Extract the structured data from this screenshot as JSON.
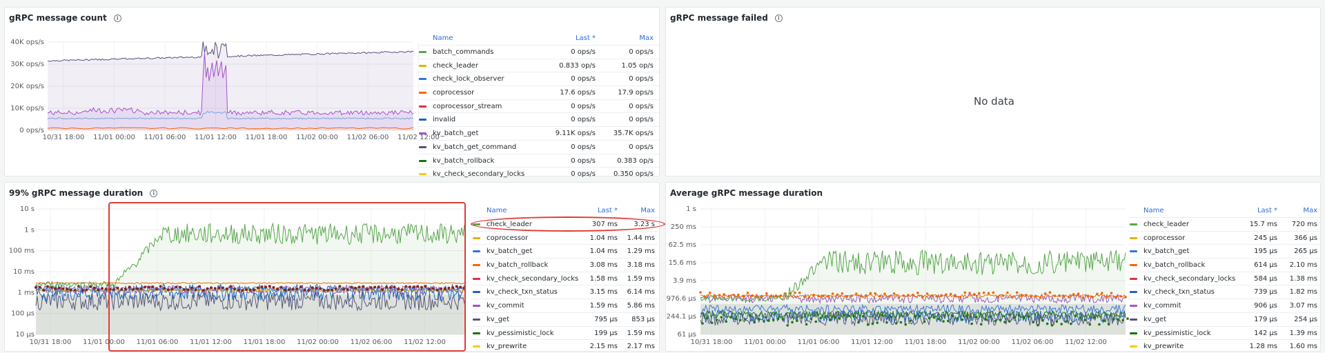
{
  "panels": {
    "count": {
      "title": "gRPC message count",
      "yticks": [
        "40K ops/s",
        "30K ops/s",
        "20K ops/s",
        "10K ops/s",
        "0 ops/s"
      ],
      "xticks": [
        "10/31 18:00",
        "11/01 00:00",
        "11/01 06:00",
        "11/01 12:00",
        "11/01 18:00",
        "11/02 00:00",
        "11/02 06:00",
        "11/02 12:00"
      ],
      "legend_head": {
        "name": "Name",
        "col1": "Last *",
        "col2": "Max"
      },
      "legend": [
        {
          "name": "batch_commands",
          "last": "0 ops/s",
          "max": "0 ops/s",
          "color": "#56a64b"
        },
        {
          "name": "check_leader",
          "last": "0.833 op/s",
          "max": "1.05 op/s",
          "color": "#e0b400"
        },
        {
          "name": "check_lock_observer",
          "last": "0 ops/s",
          "max": "0 ops/s",
          "color": "#3274d9"
        },
        {
          "name": "coprocessor",
          "last": "17.6 ops/s",
          "max": "17.9 ops/s",
          "color": "#fa6400"
        },
        {
          "name": "coprocessor_stream",
          "last": "0 ops/s",
          "max": "0 ops/s",
          "color": "#e02f44"
        },
        {
          "name": "invalid",
          "last": "0 ops/s",
          "max": "0 ops/s",
          "color": "#1f60c4"
        },
        {
          "name": "kv_batch_get",
          "last": "9.11K ops/s",
          "max": "35.7K ops/s",
          "color": "#a352cc"
        },
        {
          "name": "kv_batch_get_command",
          "last": "0 ops/s",
          "max": "0 ops/s",
          "color": "#5a4f7c"
        },
        {
          "name": "kv_batch_rollback",
          "last": "0 ops/s",
          "max": "0.383 op/s",
          "color": "#19730e"
        },
        {
          "name": "kv_check_secondary_locks",
          "last": "0 ops/s",
          "max": "0.350 ops/s",
          "color": "#f2cc0c"
        }
      ]
    },
    "failed": {
      "title": "gRPC message failed",
      "no_data": "No data"
    },
    "p99": {
      "title": "99% gRPC message duration",
      "yticks": [
        "10 s",
        "1 s",
        "100 ms",
        "10 ms",
        "1 ms",
        "100 µs",
        "10 µs"
      ],
      "xticks": [
        "10/31 18:00",
        "11/01 00:00",
        "11/01 06:00",
        "11/01 12:00",
        "11/01 18:00",
        "11/02 00:00",
        "11/02 06:00",
        "11/02 12:00"
      ],
      "legend_head": {
        "name": "Name",
        "col1": "Last *",
        "col2": "Max"
      },
      "legend": [
        {
          "name": "check_leader",
          "last": "307 ms",
          "max": "3.23 s",
          "color": "#56a64b"
        },
        {
          "name": "coprocessor",
          "last": "1.04 ms",
          "max": "1.44 ms",
          "color": "#e0b400"
        },
        {
          "name": "kv_batch_get",
          "last": "1.04 ms",
          "max": "1.29 ms",
          "color": "#3274d9"
        },
        {
          "name": "kv_batch_rollback",
          "last": "3.08 ms",
          "max": "3.18 ms",
          "color": "#fa6400"
        },
        {
          "name": "kv_check_secondary_locks",
          "last": "1.58 ms",
          "max": "1.59 ms",
          "color": "#e02f44"
        },
        {
          "name": "kv_check_txn_status",
          "last": "3.15 ms",
          "max": "6.14 ms",
          "color": "#1f60c4"
        },
        {
          "name": "kv_commit",
          "last": "1.59 ms",
          "max": "5.86 ms",
          "color": "#a352cc"
        },
        {
          "name": "kv_get",
          "last": "795 µs",
          "max": "853 µs",
          "color": "#5a4f7c"
        },
        {
          "name": "kv_pessimistic_lock",
          "last": "199 µs",
          "max": "1.59 ms",
          "color": "#19730e"
        },
        {
          "name": "kv_prewrite",
          "last": "2.15 ms",
          "max": "2.17 ms",
          "color": "#f2cc0c"
        }
      ]
    },
    "avg": {
      "title": "Average gRPC message duration",
      "yticks": [
        "1 s",
        "250 ms",
        "62.5 ms",
        "15.6 ms",
        "3.9 ms",
        "976.6 µs",
        "244.1 µs",
        "61 µs"
      ],
      "xticks": [
        "10/31 18:00",
        "11/01 00:00",
        "11/01 06:00",
        "11/01 12:00",
        "11/01 18:00",
        "11/02 00:00",
        "11/02 06:00",
        "11/02 12:00"
      ],
      "legend_head": {
        "name": "Name",
        "col1": "Last *",
        "col2": "Max"
      },
      "legend": [
        {
          "name": "check_leader",
          "last": "15.7 ms",
          "max": "720 ms",
          "color": "#56a64b"
        },
        {
          "name": "coprocessor",
          "last": "245 µs",
          "max": "366 µs",
          "color": "#e0b400"
        },
        {
          "name": "kv_batch_get",
          "last": "195 µs",
          "max": "265 µs",
          "color": "#3274d9"
        },
        {
          "name": "kv_batch_rollback",
          "last": "614 µs",
          "max": "2.10 ms",
          "color": "#fa6400"
        },
        {
          "name": "kv_check_secondary_locks",
          "last": "584 µs",
          "max": "1.38 ms",
          "color": "#e02f44"
        },
        {
          "name": "kv_check_txn_status",
          "last": "739 µs",
          "max": "1.82 ms",
          "color": "#1f60c4"
        },
        {
          "name": "kv_commit",
          "last": "906 µs",
          "max": "3.07 ms",
          "color": "#a352cc"
        },
        {
          "name": "kv_get",
          "last": "179 µs",
          "max": "254 µs",
          "color": "#5a4f7c"
        },
        {
          "name": "kv_pessimistic_lock",
          "last": "142 µs",
          "max": "1.39 ms",
          "color": "#19730e"
        },
        {
          "name": "kv_prewrite",
          "last": "1.28 ms",
          "max": "1.60 ms",
          "color": "#f2cc0c"
        }
      ]
    }
  }
}
